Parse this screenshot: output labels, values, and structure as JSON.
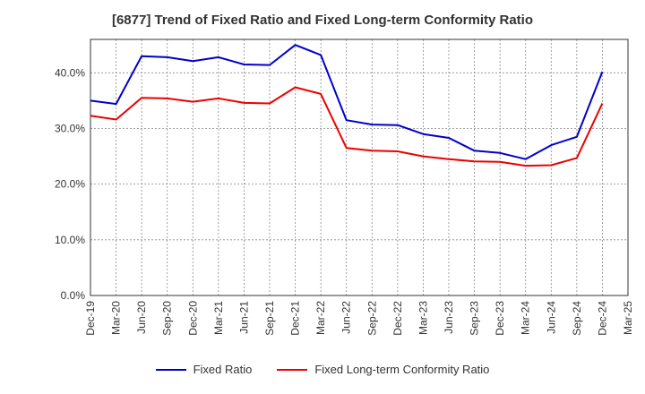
{
  "chart_data": {
    "type": "line",
    "title": "[6877]  Trend of Fixed Ratio and Fixed Long-term Conformity Ratio",
    "xlabel": "",
    "ylabel": "",
    "categories": [
      "Dec-19",
      "Mar-20",
      "Jun-20",
      "Sep-20",
      "Dec-20",
      "Mar-21",
      "Jun-21",
      "Sep-21",
      "Dec-21",
      "Mar-22",
      "Jun-22",
      "Sep-22",
      "Dec-22",
      "Mar-23",
      "Jun-23",
      "Sep-23",
      "Dec-23",
      "Mar-24",
      "Jun-24",
      "Sep-24",
      "Dec-24",
      "Mar-25"
    ],
    "y_ticks": [
      0,
      10,
      20,
      30,
      40
    ],
    "y_tick_labels": [
      "0.0%",
      "10.0%",
      "20.0%",
      "30.0%",
      "40.0%"
    ],
    "ylim": [
      0,
      46
    ],
    "grid": true,
    "legend_position": "bottom",
    "series": [
      {
        "name": "Fixed Ratio",
        "color": "#0000cc",
        "values": [
          35.0,
          34.4,
          43.0,
          42.8,
          42.1,
          42.8,
          41.5,
          41.4,
          45.0,
          43.2,
          31.5,
          30.7,
          30.6,
          29.0,
          28.3,
          26.0,
          25.6,
          24.5,
          27.0,
          28.5,
          40.2,
          null
        ]
      },
      {
        "name": "Fixed Long-term Conformity Ratio",
        "color": "#ee0000",
        "values": [
          32.3,
          31.6,
          35.5,
          35.4,
          34.8,
          35.4,
          34.6,
          34.5,
          37.4,
          36.2,
          26.5,
          26.0,
          25.9,
          25.0,
          24.5,
          24.1,
          24.0,
          23.3,
          23.4,
          24.7,
          34.5,
          null
        ]
      }
    ]
  }
}
